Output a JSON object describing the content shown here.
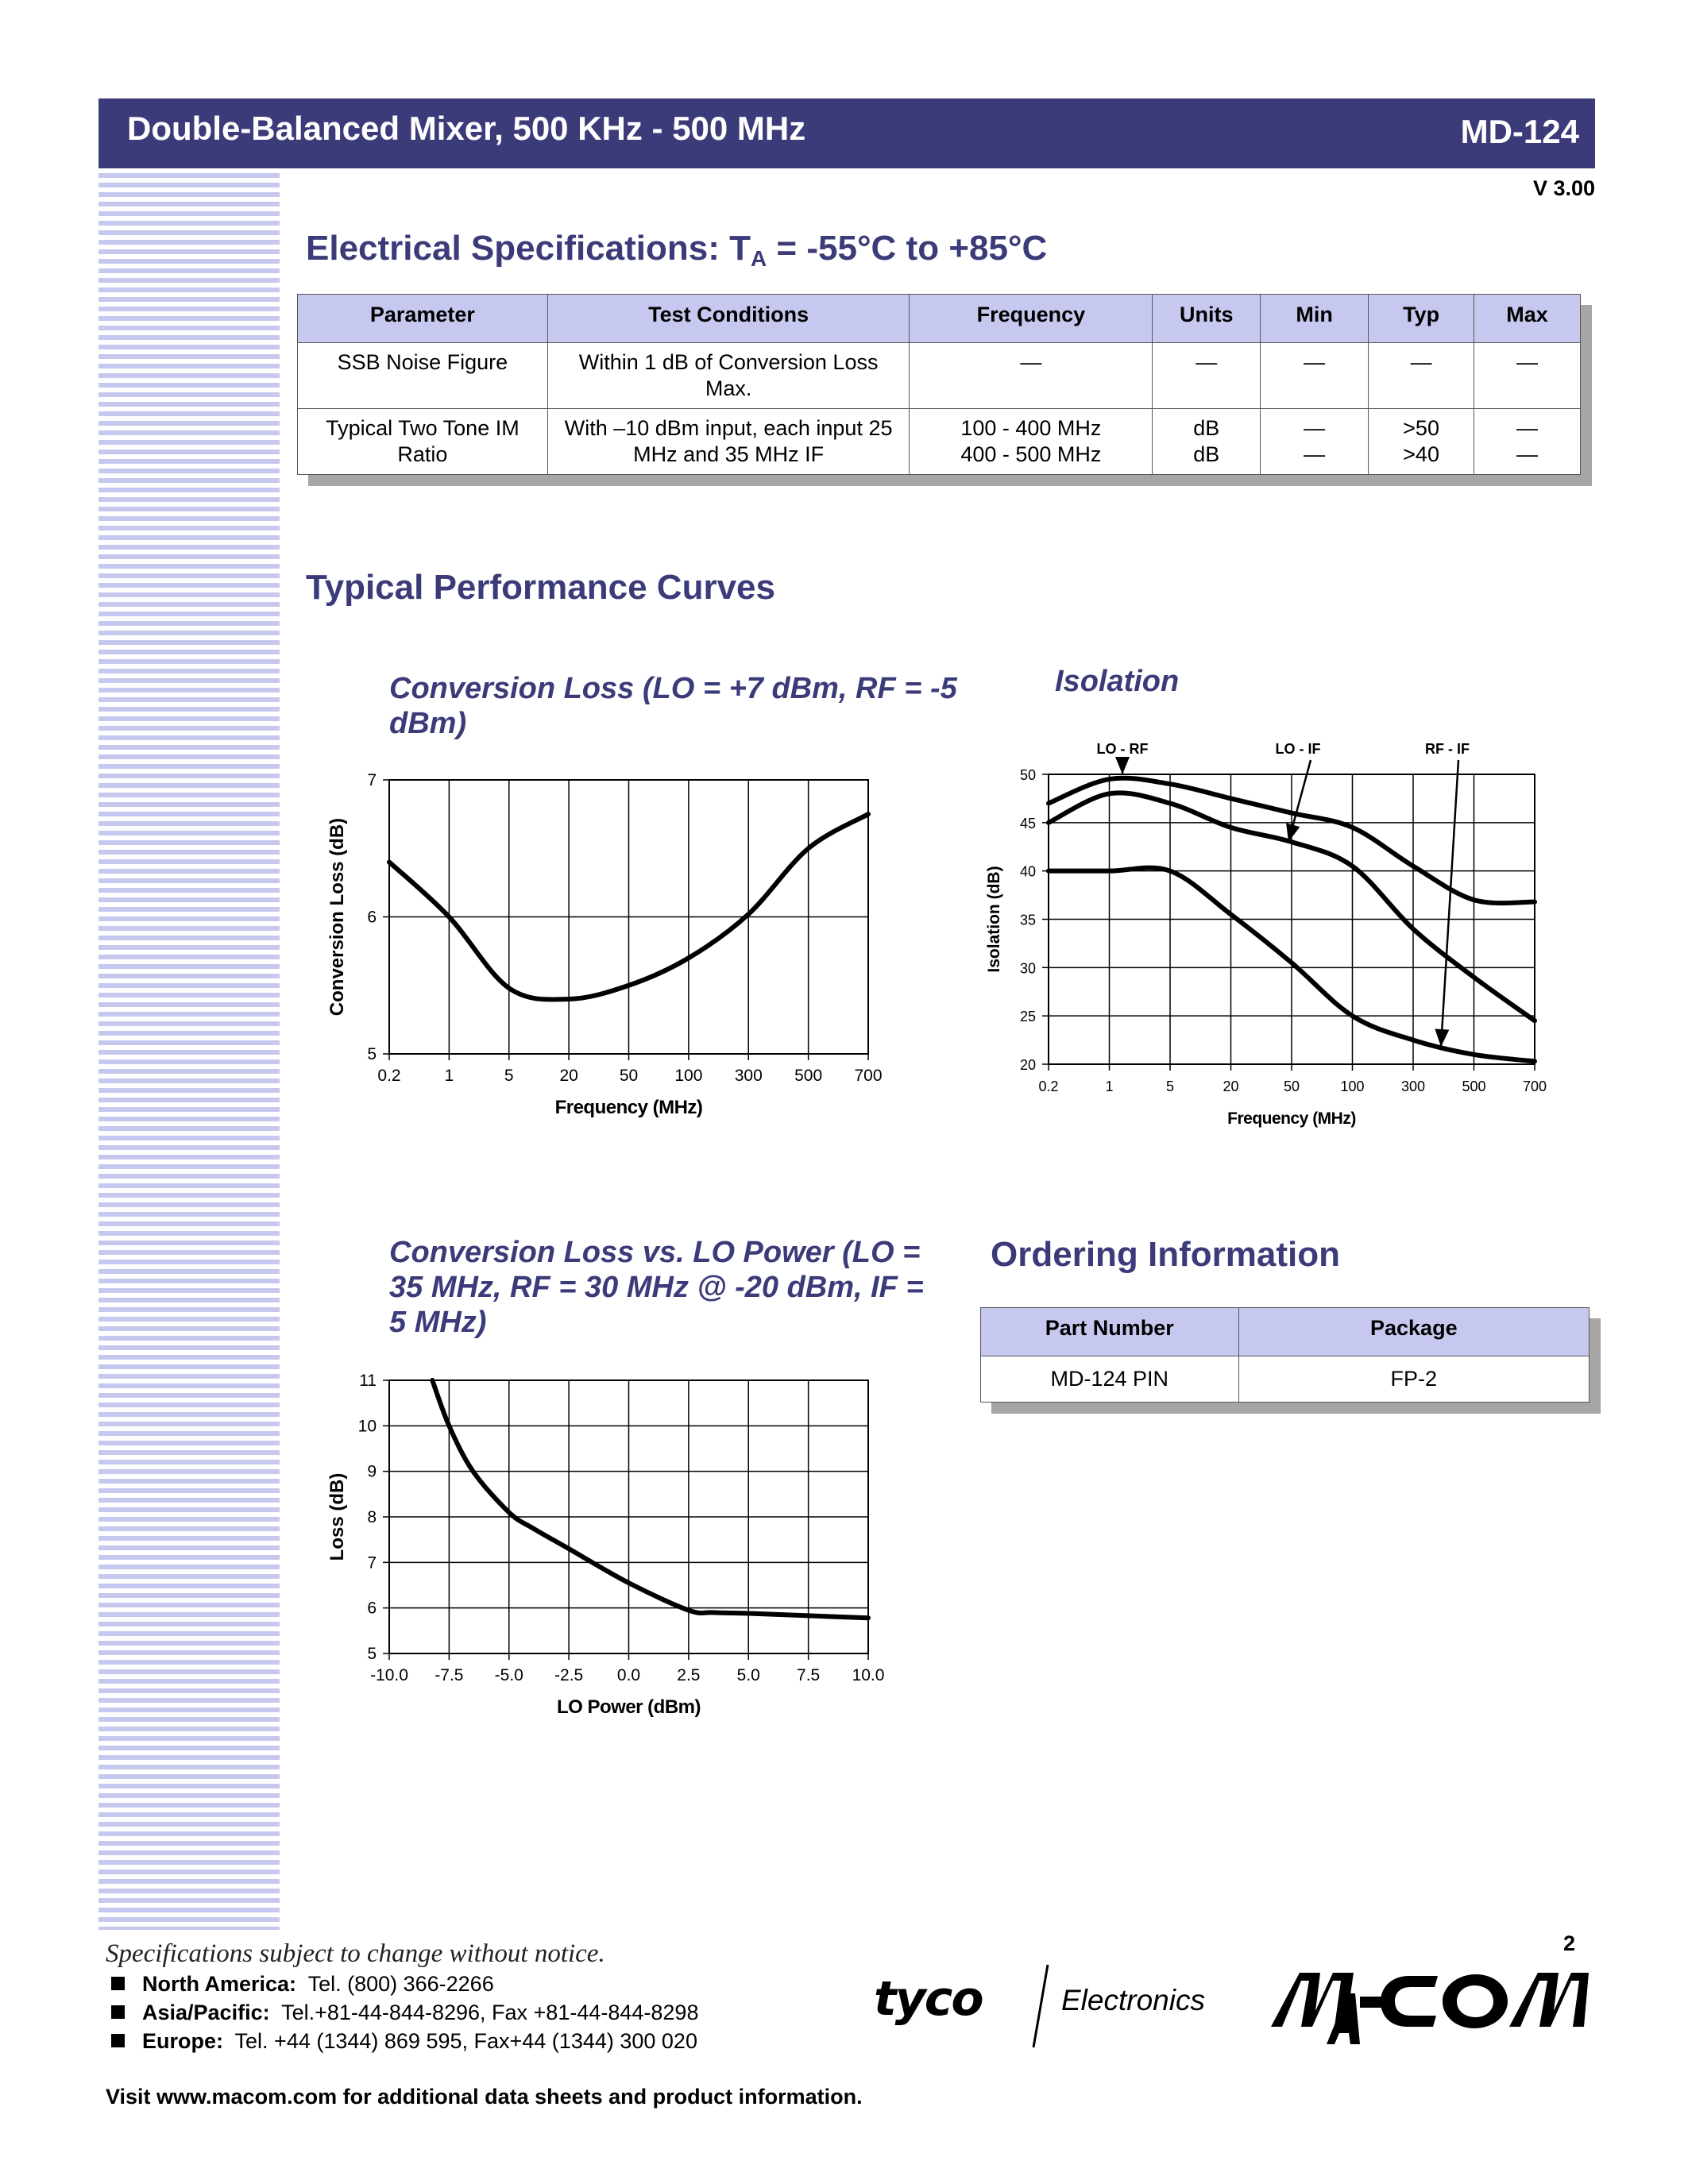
{
  "header": {
    "title": "Double-Balanced Mixer, 500 KHz - 500 MHz",
    "part_number": "MD-124",
    "version": "V 3.00"
  },
  "electrical": {
    "heading_prefix": "Electrical Specifications:  T",
    "heading_sub": "A",
    "heading_suffix": " = -55°C to +85°C",
    "columns": [
      "Parameter",
      "Test Conditions",
      "Frequency",
      "Units",
      "Min",
      "Typ",
      "Max"
    ],
    "rows": [
      {
        "parameter": "SSB Noise Figure",
        "conditions": "Within 1 dB of Conversion Loss Max.",
        "frequency": "—",
        "units": "—",
        "min": "—",
        "typ": "—",
        "max": "—"
      },
      {
        "parameter": "Typical Two Tone IM Ratio",
        "conditions": "With –10 dBm input, each input 25 MHz and 35 MHz IF",
        "frequency": "100 - 400 MHz\n400 - 500 MHz",
        "units": "dB\ndB",
        "min": "—\n—",
        "typ": ">50\n>40",
        "max": "—\n—"
      }
    ]
  },
  "curves_heading": "Typical Performance Curves",
  "ordering": {
    "heading": "Ordering Information",
    "columns": [
      "Part Number",
      "Package"
    ],
    "rows": [
      [
        "MD-124 PIN",
        "FP-2"
      ]
    ]
  },
  "footer": {
    "note": "Specifications subject to change without notice.",
    "page": "2",
    "contacts": [
      {
        "region": "North America:",
        "text": "Tel. (800) 366-2266"
      },
      {
        "region": "Asia/Pacific:",
        "text": "Tel.+81-44-844-8296,  Fax +81-44-844-8298"
      },
      {
        "region": "Europe:",
        "text": "Tel. +44 (1344) 869 595,  Fax+44 (1344) 300 020"
      }
    ],
    "visit": "Visit www.macom.com for additional data sheets and product information.",
    "logo_tyco": "tyco",
    "logo_electronics": "Electronics",
    "logo_macom": "M/A-COM"
  },
  "chart_data": [
    {
      "type": "line",
      "title": "Conversion Loss (LO = +7 dBm, RF = -5 dBm)",
      "xlabel": "Frequency (MHz)",
      "ylabel": "Conversion Loss (dB)",
      "x_ticks": [
        "0.2",
        "1",
        "5",
        "20",
        "50",
        "100",
        "300",
        "500",
        "700"
      ],
      "y_ticks": [
        "5",
        "6",
        "7"
      ],
      "ylim": [
        5,
        7
      ],
      "grid": true,
      "series": [
        {
          "x": [
            "0.2",
            "1",
            "5",
            "20",
            "50",
            "100",
            "300",
            "500",
            "700"
          ],
          "values": [
            6.4,
            6.0,
            5.48,
            5.4,
            5.5,
            5.7,
            6.02,
            6.5,
            6.75
          ]
        }
      ]
    },
    {
      "type": "line",
      "title": "Isolation",
      "xlabel": "Frequency (MHz)",
      "ylabel": "Isolation (dB)",
      "x_ticks": [
        "0.2",
        "1",
        "5",
        "20",
        "50",
        "100",
        "300",
        "500",
        "700"
      ],
      "y_ticks": [
        "20",
        "25",
        "30",
        "35",
        "40",
        "45",
        "50"
      ],
      "ylim": [
        20,
        50
      ],
      "grid": true,
      "annotations": [
        "LO - RF",
        "LO - IF",
        "RF - IF"
      ],
      "series": [
        {
          "name": "LO - RF",
          "x": [
            "0.2",
            "1",
            "5",
            "20",
            "50",
            "100",
            "300",
            "500",
            "700"
          ],
          "values": [
            47,
            49.5,
            49,
            47.5,
            46,
            44.5,
            40.5,
            37,
            36.8
          ]
        },
        {
          "name": "LO - IF",
          "x": [
            "0.2",
            "1",
            "5",
            "20",
            "50",
            "100",
            "300",
            "500",
            "700"
          ],
          "values": [
            45,
            48,
            47,
            44.5,
            43,
            40.5,
            34,
            29,
            24.5
          ]
        },
        {
          "name": "RF - IF",
          "x": [
            "0.2",
            "1",
            "5",
            "20",
            "50",
            "100",
            "300",
            "500",
            "700"
          ],
          "values": [
            40,
            40,
            40,
            35.5,
            30.5,
            25,
            22.5,
            21,
            20.3
          ]
        }
      ]
    },
    {
      "type": "line",
      "title": "Conversion Loss vs. LO Power (LO = 35 MHz, RF = 30 MHz @ -20 dBm, IF = 5 MHz)",
      "xlabel": "LO Power (dBm)",
      "ylabel": "Loss (dB)",
      "x_ticks": [
        "-10.0",
        "-7.5",
        "-5.0",
        "-2.5",
        "0.0",
        "2.5",
        "5.0",
        "7.5",
        "10.0"
      ],
      "y_ticks": [
        "5",
        "6",
        "7",
        "8",
        "9",
        "10",
        "11"
      ],
      "xlim": [
        -10,
        10
      ],
      "ylim": [
        5,
        11
      ],
      "grid": true,
      "series": [
        {
          "x": [
            -8.2,
            -7.5,
            -6.5,
            -5,
            -4,
            -2.5,
            0,
            2.5,
            3.5,
            5,
            7.5,
            10
          ],
          "values": [
            11,
            10,
            9,
            8.1,
            7.75,
            7.3,
            6.55,
            5.95,
            5.9,
            5.88,
            5.83,
            5.78
          ]
        }
      ]
    }
  ]
}
